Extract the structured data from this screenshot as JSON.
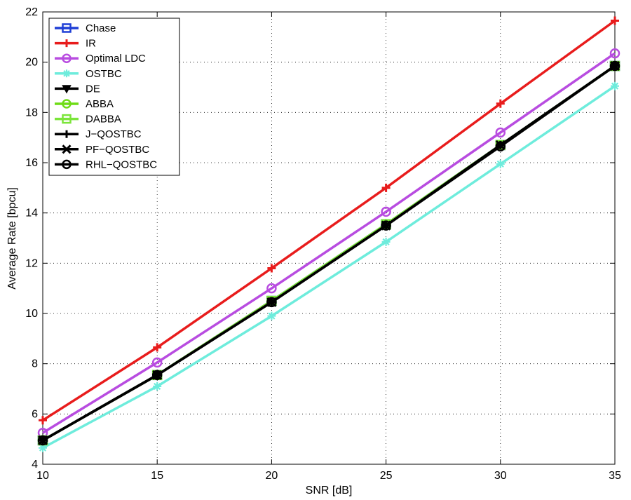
{
  "chart_data": {
    "type": "line",
    "title": "",
    "xlabel": "SNR [dB]",
    "ylabel": "Average Rate [bpcu]",
    "xlim": [
      10,
      35
    ],
    "ylim": [
      4,
      22
    ],
    "x_ticks": [
      10,
      15,
      20,
      25,
      30,
      35
    ],
    "y_ticks": [
      4,
      6,
      8,
      10,
      12,
      14,
      16,
      18,
      20,
      22
    ],
    "grid": true,
    "legend_position": "top-left",
    "x": [
      10,
      15,
      20,
      25,
      30,
      35
    ],
    "series": [
      {
        "name": "Chase",
        "color": "#1f3fd6",
        "marker": "square",
        "values": [
          4.95,
          7.55,
          10.5,
          13.55,
          16.7,
          19.85
        ]
      },
      {
        "name": "IR",
        "color": "#e81c1c",
        "marker": "plus",
        "values": [
          5.75,
          8.65,
          11.8,
          15.0,
          18.35,
          21.65
        ]
      },
      {
        "name": "Optimal LDC",
        "color": "#b84ce0",
        "marker": "circle",
        "values": [
          5.25,
          8.05,
          11.0,
          14.05,
          17.2,
          20.35
        ]
      },
      {
        "name": "OSTBC",
        "color": "#6eecdc",
        "marker": "star",
        "values": [
          4.65,
          7.1,
          9.9,
          12.85,
          15.95,
          19.05
        ]
      },
      {
        "name": "DE",
        "color": "#000000",
        "marker": "triangle-down",
        "values": [
          4.95,
          7.55,
          10.5,
          13.5,
          16.7,
          19.85
        ]
      },
      {
        "name": "ABBA",
        "color": "#6fdc16",
        "marker": "circle",
        "values": [
          4.95,
          7.55,
          10.5,
          13.55,
          16.7,
          19.85
        ]
      },
      {
        "name": "DABBA",
        "color": "#7be53a",
        "marker": "square",
        "values": [
          4.95,
          7.55,
          10.5,
          13.55,
          16.7,
          19.85
        ]
      },
      {
        "name": "J−QOSTBC",
        "color": "#000000",
        "marker": "plus",
        "values": [
          4.95,
          7.55,
          10.45,
          13.5,
          16.7,
          19.85
        ]
      },
      {
        "name": "PF−QOSTBC",
        "color": "#000000",
        "marker": "x",
        "values": [
          4.95,
          7.55,
          10.45,
          13.5,
          16.7,
          19.85
        ]
      },
      {
        "name": "RHL−QOSTBC",
        "color": "#000000",
        "marker": "circle",
        "values": [
          4.95,
          7.55,
          10.45,
          13.5,
          16.65,
          19.85
        ]
      }
    ]
  }
}
